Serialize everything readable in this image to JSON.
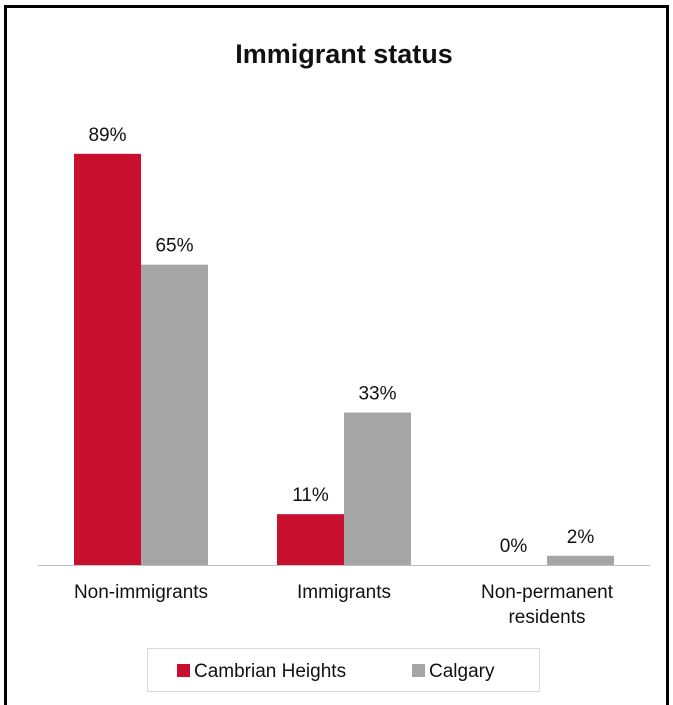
{
  "chart_data": {
    "type": "bar",
    "title": "Immigrant status",
    "categories": [
      "Non-immigrants",
      "Immigrants",
      "Non-permanent residents"
    ],
    "category_lines": [
      [
        "Non-immigrants"
      ],
      [
        "Immigrants"
      ],
      [
        "Non-permanent",
        "residents"
      ]
    ],
    "series": [
      {
        "name": "Cambrian Heights",
        "color": "#C8102E",
        "values": [
          89,
          11,
          0
        ],
        "labels": [
          "89%",
          "11%",
          "0%"
        ]
      },
      {
        "name": "Calgary",
        "color": "#A6A6A6",
        "values": [
          65,
          33,
          2
        ],
        "labels": [
          "65%",
          "33%",
          "2%"
        ]
      }
    ],
    "ylim": [
      0,
      100
    ],
    "grid": false,
    "legend_position": "bottom"
  }
}
